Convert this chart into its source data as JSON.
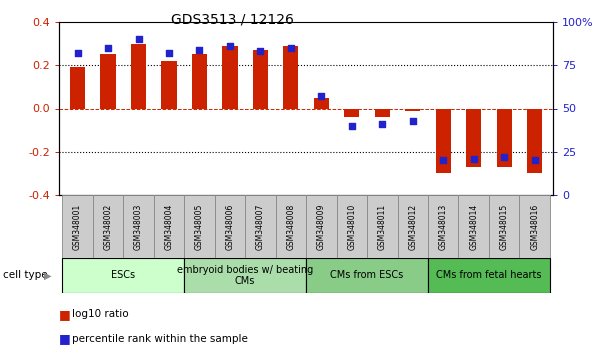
{
  "title": "GDS3513 / 12126",
  "samples": [
    "GSM348001",
    "GSM348002",
    "GSM348003",
    "GSM348004",
    "GSM348005",
    "GSM348006",
    "GSM348007",
    "GSM348008",
    "GSM348009",
    "GSM348010",
    "GSM348011",
    "GSM348012",
    "GSM348013",
    "GSM348014",
    "GSM348015",
    "GSM348016"
  ],
  "log10_ratio": [
    0.19,
    0.25,
    0.3,
    0.22,
    0.25,
    0.29,
    0.27,
    0.29,
    0.05,
    -0.04,
    -0.04,
    -0.01,
    -0.3,
    -0.27,
    -0.27,
    -0.3
  ],
  "percentile_rank": [
    82,
    85,
    90,
    82,
    84,
    86,
    83,
    85,
    57,
    40,
    41,
    43,
    20,
    21,
    22,
    20
  ],
  "bar_color": "#cc2200",
  "dot_color": "#2222cc",
  "ylim_left": [
    -0.4,
    0.4
  ],
  "ylim_right": [
    0,
    100
  ],
  "yticks_left": [
    -0.4,
    -0.2,
    0.0,
    0.2,
    0.4
  ],
  "yticks_right": [
    0,
    25,
    50,
    75,
    100
  ],
  "ytick_right_labels": [
    "0",
    "25",
    "50",
    "75",
    "100%"
  ],
  "cell_groups": [
    {
      "label": "ESCs",
      "start": 0,
      "end": 4,
      "color": "#ccffcc"
    },
    {
      "label": "embryoid bodies w/ beating\nCMs",
      "start": 4,
      "end": 8,
      "color": "#aaddaa"
    },
    {
      "label": "CMs from ESCs",
      "start": 8,
      "end": 12,
      "color": "#88cc88"
    },
    {
      "label": "CMs from fetal hearts",
      "start": 12,
      "end": 16,
      "color": "#55bb55"
    }
  ],
  "legend_bar_label": "log10 ratio",
  "legend_dot_label": "percentile rank within the sample",
  "cell_type_label": "cell type",
  "tick_label_color_left": "#cc2200",
  "tick_label_color_right": "#2222cc",
  "bar_width": 0.5,
  "sample_box_color": "#cccccc"
}
